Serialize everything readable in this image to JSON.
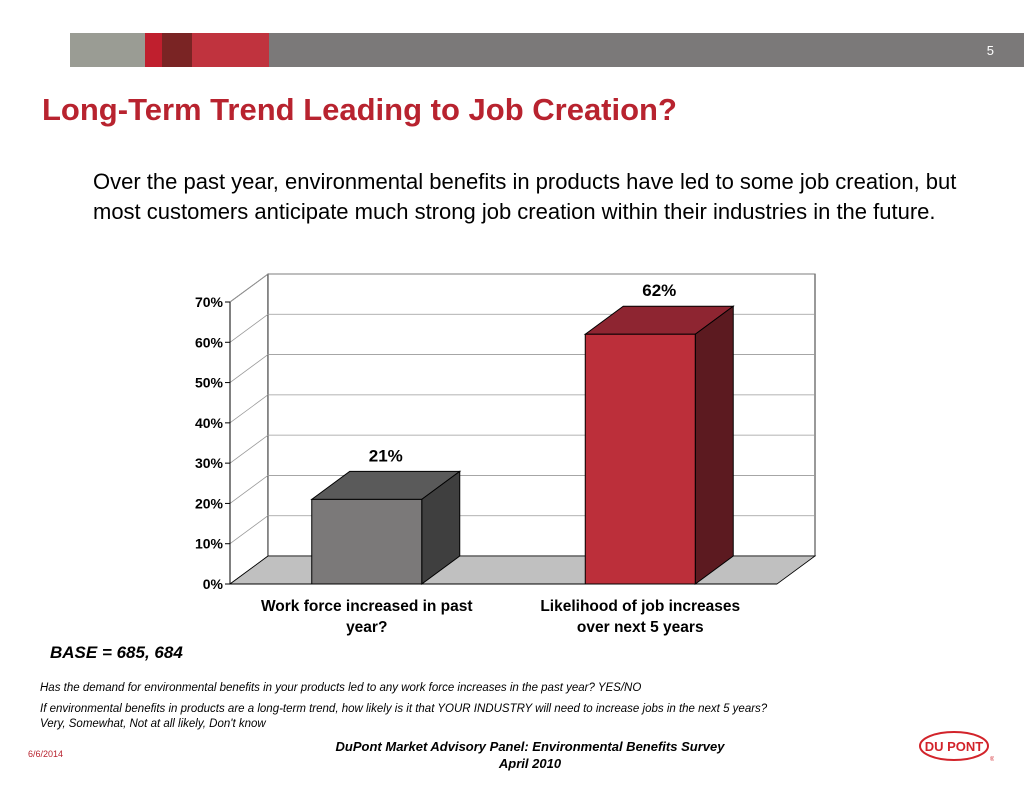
{
  "slide": {
    "page_number": "5",
    "title": "Long-Term Trend Leading to Job Creation?",
    "subtitle": "Over the past year, environmental benefits in products have led to some job creation, but most customers anticipate much strong job creation within their industries in the future.",
    "base": "BASE = 685, 684",
    "questions": [
      "Has the demand for environmental benefits in your products led to any work force increases in the past year?  YES/NO",
      "If environmental benefits in products are a long-term trend, how likely is it that YOUR INDUSTRY will need to increase jobs in the next 5 years?",
      "Very, Somewhat, Not at all likely, Don't know"
    ],
    "footer_line1": "DuPont Market Advisory Panel:  Environmental Benefits Survey",
    "footer_line2": "April 2010",
    "date": "6/6/2014",
    "logo_text": "DU PONT",
    "logo_mark": "®",
    "colors": {
      "accent_red": "#b8232f",
      "bar_gray": "#7b7979",
      "bar_red": "#bc2f3a"
    }
  },
  "chart_data": {
    "type": "bar",
    "categories": [
      "Work force increased in past year?",
      "Likelihood of job increases over next 5 years"
    ],
    "category_lines": [
      [
        "Work force increased in past",
        "year?"
      ],
      [
        "Likelihood of job increases",
        "over next 5 years"
      ]
    ],
    "values": [
      21,
      62
    ],
    "data_labels": [
      "21%",
      "62%"
    ],
    "ylim": [
      0,
      70
    ],
    "yticks": [
      0,
      10,
      20,
      30,
      40,
      50,
      60,
      70
    ],
    "ytick_labels": [
      "0%",
      "10%",
      "20%",
      "30%",
      "40%",
      "50%",
      "60%",
      "70%"
    ],
    "grid": true,
    "three_d": true,
    "bar_colors": [
      "#7b7979",
      "#bc2f3a"
    ]
  }
}
